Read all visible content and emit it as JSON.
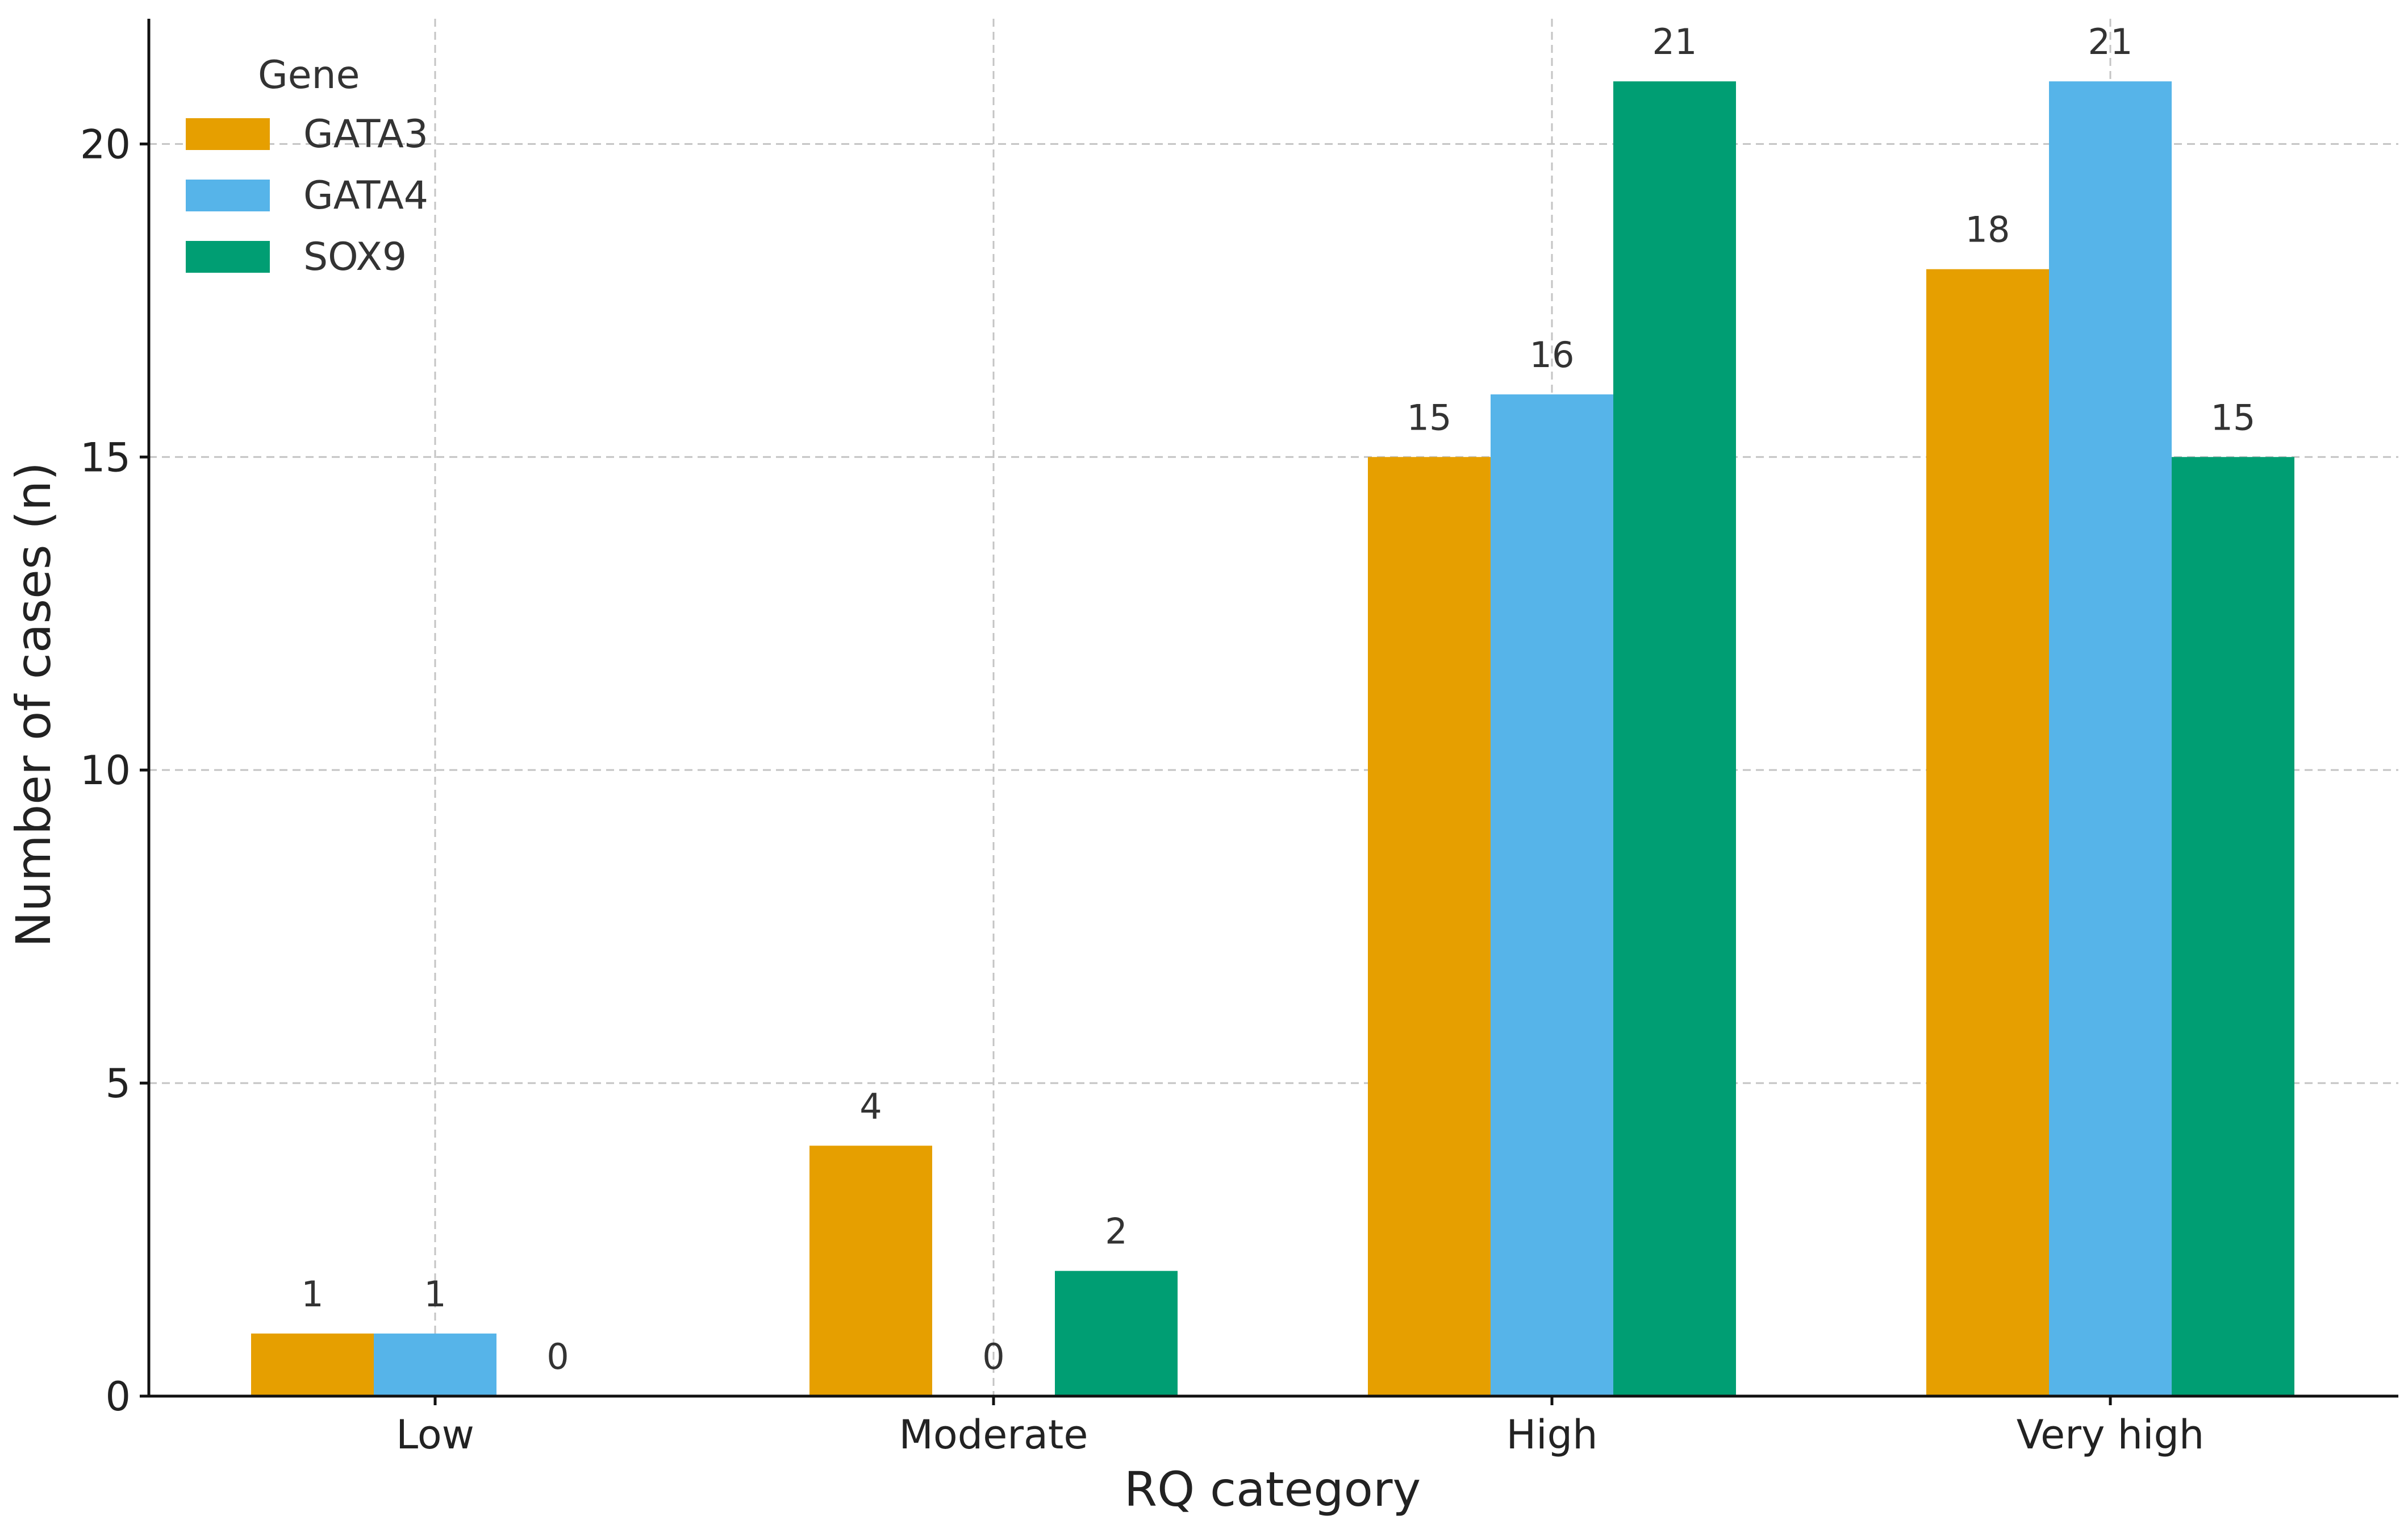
{
  "chart_data": {
    "type": "bar",
    "categories": [
      "Low",
      "Moderate",
      "High",
      "Very high"
    ],
    "series": [
      {
        "name": "GATA3",
        "color": "#E69F00",
        "values": [
          1,
          4,
          15,
          18
        ]
      },
      {
        "name": "GATA4",
        "color": "#56B4E9",
        "values": [
          1,
          0,
          16,
          21
        ]
      },
      {
        "name": "SOX9",
        "color": "#009E73",
        "values": [
          0,
          2,
          21,
          15
        ]
      }
    ],
    "title": "",
    "xlabel": "RQ category",
    "ylabel": "Number of cases (n)",
    "ylim": [
      0,
      22
    ],
    "yticks": [
      0,
      5,
      10,
      15,
      20
    ],
    "grid": true,
    "legend": {
      "title": "Gene",
      "position": "top-left"
    }
  }
}
